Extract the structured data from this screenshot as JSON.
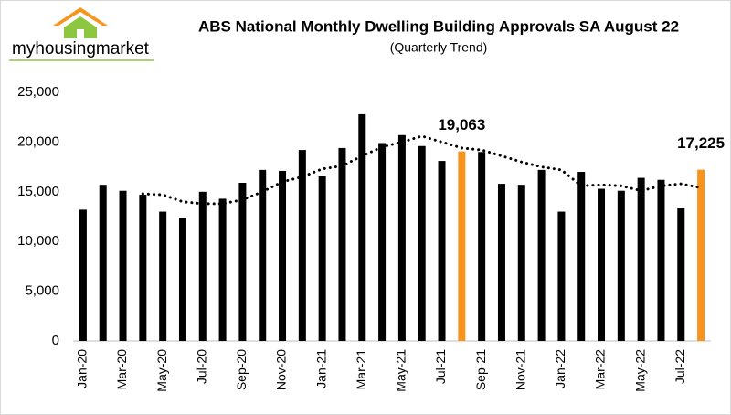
{
  "chart_data": {
    "type": "bar",
    "title": "ABS National Monthly Dwelling Building Approvals SA August 22",
    "subtitle": "(Quarterly Trend)",
    "logo": "myhousingmarket",
    "categories": [
      "Jan-20",
      null,
      "Mar-20",
      null,
      "May-20",
      null,
      "Jul-20",
      null,
      "Sep-20",
      null,
      "Nov-20",
      null,
      "Jan-21",
      null,
      "Mar-21",
      null,
      "May-21",
      null,
      "Jul-21",
      null,
      "Sep-21",
      null,
      "Nov-21",
      null,
      "Jan-22",
      null,
      "Mar-22",
      null,
      "May-22",
      null,
      "Jul-22",
      null
    ],
    "series": [
      {
        "type": "bar",
        "values": [
          13200,
          15700,
          15100,
          14700,
          13000,
          12400,
          15000,
          14300,
          15900,
          17200,
          17100,
          19200,
          16600,
          19400,
          22800,
          19900,
          20700,
          19600,
          18100,
          19063,
          19000,
          15800,
          15700,
          17200,
          13000,
          17000,
          15300,
          15100,
          16400,
          16200,
          13400,
          17225
        ],
        "colors": [
          "#000000",
          "#000000",
          "#000000",
          "#000000",
          "#000000",
          "#000000",
          "#000000",
          "#000000",
          "#000000",
          "#000000",
          "#000000",
          "#000000",
          "#000000",
          "#000000",
          "#000000",
          "#000000",
          "#000000",
          "#000000",
          "#000000",
          "#f7941d",
          "#000000",
          "#000000",
          "#000000",
          "#000000",
          "#000000",
          "#000000",
          "#000000",
          "#000000",
          "#000000",
          "#000000",
          "#000000",
          "#f7941d"
        ],
        "value_labels": [
          null,
          null,
          null,
          null,
          null,
          null,
          null,
          null,
          null,
          null,
          null,
          null,
          null,
          null,
          null,
          null,
          null,
          null,
          null,
          "19,063",
          null,
          null,
          null,
          null,
          null,
          null,
          null,
          null,
          null,
          null,
          null,
          "17,225"
        ]
      },
      {
        "type": "line",
        "color": "#000000",
        "dotted": true,
        "values": [
          null,
          null,
          null,
          14800,
          14700,
          14000,
          13800,
          13800,
          14200,
          15000,
          16000,
          16500,
          17300,
          17600,
          18600,
          19500,
          20000,
          20600,
          20000,
          19400,
          19200,
          18600,
          18000,
          17500,
          17200,
          15600,
          15700,
          15600,
          15100,
          15600,
          15800,
          15400
        ]
      }
    ],
    "ylim": [
      0,
      25000
    ],
    "yticks": [
      0,
      {
        "value": 5000,
        "label": "5,000"
      },
      {
        "value": 10000,
        "label": "10,000"
      },
      {
        "value": 15000,
        "label": "15,000"
      },
      {
        "value": 20000,
        "label": "20,000"
      },
      {
        "value": 25000,
        "label": "25,000"
      }
    ],
    "grid": false
  }
}
